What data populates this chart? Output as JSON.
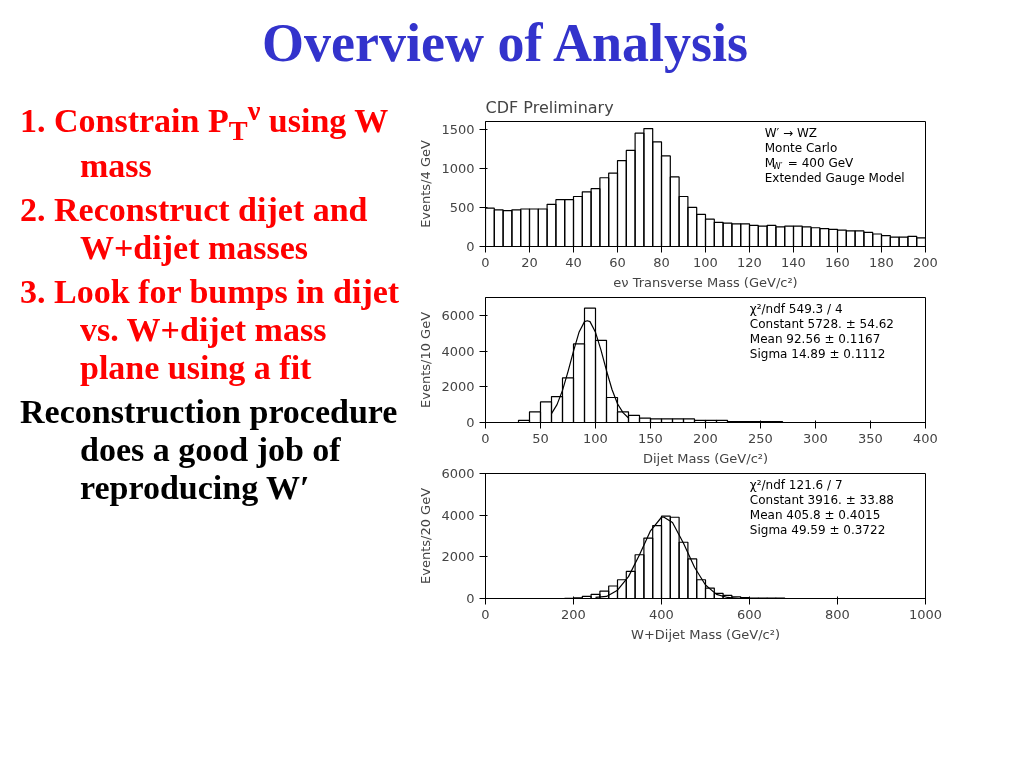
{
  "chart_data": [
    {
      "type": "other",
      "title": "Overview of Analysis",
      "annotations": [
        "1. Constrain P$_{T}$$^{ν}$ using W mass",
        "2. Reconstruct dijet and W+dijet masses",
        "3. Look for bumps in dijet vs. W+dijet mass plane using a fit",
        "Reconstruction procedure does a good job of reproducing W′"
      ],
      "colors": [
        "#ff0000",
        "#ff0000",
        "#ff0000",
        "#000000"
      ]
    },
    {
      "type": "histogram",
      "title": "CDF Preliminary",
      "xlabel": "eν Transverse Mass (GeV/c²)",
      "ylabel": "Events/4 GeV",
      "color": "#000000",
      "bins": [
        0,
        4,
        8,
        12,
        16,
        20,
        24,
        28,
        32,
        36,
        40,
        44,
        48,
        52,
        56,
        60,
        64,
        68,
        72,
        76,
        80,
        84,
        88,
        92,
        96,
        100,
        104,
        108,
        112,
        116,
        120,
        124,
        128,
        132,
        136,
        140,
        144,
        148,
        152,
        156,
        160,
        164,
        168,
        172,
        176,
        180,
        184,
        188,
        192,
        196,
        200
      ],
      "values": [
        490,
        470,
        460,
        470,
        480,
        480,
        480,
        540,
        600,
        600,
        640,
        700,
        740,
        880,
        940,
        1100,
        1230,
        1450,
        1510,
        1340,
        1160,
        890,
        640,
        500,
        410,
        350,
        310,
        300,
        290,
        290,
        270,
        260,
        270,
        250,
        260,
        260,
        250,
        240,
        230,
        220,
        210,
        200,
        200,
        180,
        160,
        140,
        120,
        120,
        130,
        110
      ],
      "xlim": [
        0,
        200
      ],
      "xticks": [
        0,
        20,
        40,
        60,
        80,
        100,
        120,
        140,
        160,
        180,
        200
      ],
      "ylim": [
        0,
        1600
      ],
      "yticks": [
        0,
        500,
        1000,
        1500
      ],
      "annotations": [
        "W′ → WZ",
        "Monte Carlo",
        "M$_{W′}$ = 400 GeV",
        "Extended Gauge Model"
      ]
    },
    {
      "type": "histogram",
      "xlabel": "Dijet Mass (GeV/c²)",
      "ylabel": "Events/10 GeV",
      "color": "#000000",
      "bins": [
        30,
        40,
        50,
        60,
        70,
        80,
        90,
        100,
        110,
        120,
        130,
        140,
        150,
        160,
        170,
        180,
        190,
        200,
        210,
        220,
        230,
        240,
        250,
        260,
        270
      ],
      "values": [
        120,
        600,
        1150,
        1450,
        2500,
        4400,
        6400,
        4600,
        1400,
        600,
        400,
        250,
        200,
        200,
        200,
        200,
        120,
        120,
        120,
        50,
        50,
        50,
        50,
        50
      ],
      "series": [
        {
          "type": "line",
          "color": "#000000",
          "x": [
            60,
            65,
            70,
            75,
            80,
            85,
            90,
            92.56,
            95,
            100,
            105,
            110,
            115,
            120,
            125,
            130
          ],
          "values": [
            500,
            1000,
            1800,
            2850,
            4000,
            5050,
            5650,
            5700,
            5650,
            5050,
            4050,
            2900,
            1850,
            1050,
            550,
            250
          ]
        }
      ],
      "xlim": [
        0,
        400
      ],
      "xticks": [
        0,
        50,
        100,
        150,
        200,
        250,
        300,
        350,
        400
      ],
      "ylim": [
        0,
        7000
      ],
      "yticks": [
        0,
        2000,
        4000,
        6000
      ],
      "annotations": [
        "χ²/ndf 549.3 / 4",
        "Constant 5728. ± 54.62",
        "Mean 92.56 ± 0.1167",
        "Sigma 14.89 ± 0.1112"
      ]
    },
    {
      "type": "histogram",
      "xlabel": "W+Dijet Mass (GeV/c²)",
      "ylabel": "Events/20 GeV",
      "color": "#000000",
      "bins": [
        180,
        200,
        220,
        240,
        260,
        280,
        300,
        320,
        340,
        360,
        380,
        400,
        420,
        440,
        460,
        480,
        500,
        520,
        540,
        560,
        580,
        600,
        620,
        640,
        660,
        680
      ],
      "values": [
        10,
        30,
        100,
        200,
        350,
        600,
        900,
        1300,
        2100,
        2900,
        3500,
        3950,
        3900,
        2700,
        1900,
        900,
        500,
        250,
        150,
        80,
        40,
        20,
        20,
        20,
        20
      ],
      "series": [
        {
          "type": "line",
          "color": "#000000",
          "x": [
            250,
            275,
            300,
            325,
            350,
            375,
            400,
            405.8,
            425,
            450,
            475,
            500,
            525,
            550,
            575
          ],
          "values": [
            50,
            100,
            400,
            1050,
            2100,
            3250,
            3900,
            3900,
            3650,
            2650,
            1500,
            650,
            200,
            50,
            0
          ]
        }
      ],
      "xlim": [
        0,
        1000
      ],
      "xticks": [
        0,
        200,
        400,
        600,
        800,
        1000
      ],
      "ylim": [
        0,
        6000
      ],
      "yticks": [
        0,
        2000,
        4000,
        6000
      ],
      "annotations": [
        "χ²/ndf 121.6 / 7",
        "Constant 3916. ± 33.88",
        "Mean 405.8 ± 0.4015",
        "Sigma 49.59 ± 0.3722"
      ]
    }
  ]
}
